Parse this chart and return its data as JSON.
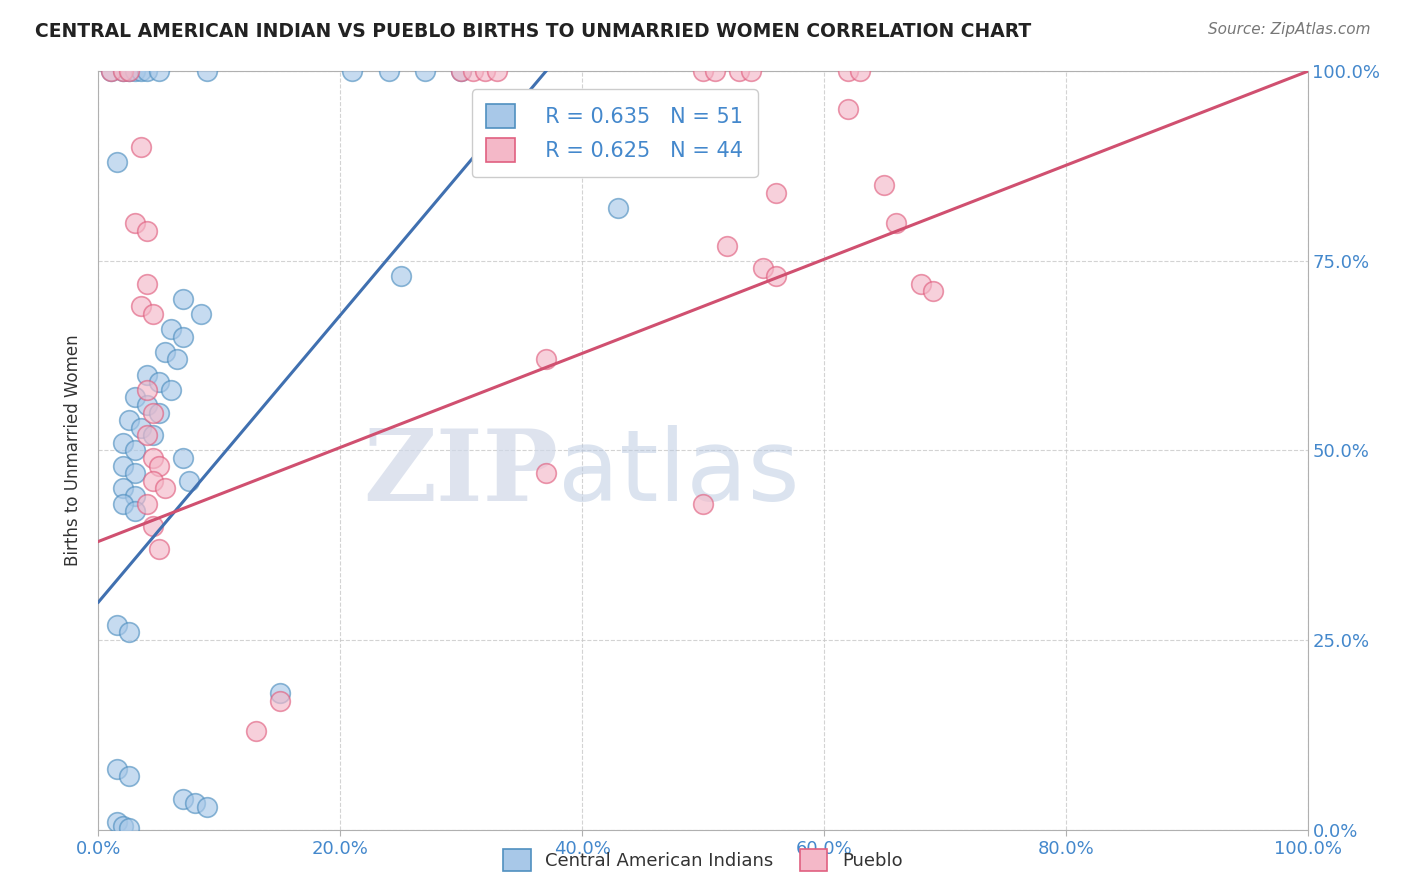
{
  "title": "CENTRAL AMERICAN INDIAN VS PUEBLO BIRTHS TO UNMARRIED WOMEN CORRELATION CHART",
  "source": "Source: ZipAtlas.com",
  "ylabel": "Births to Unmarried Women",
  "legend_blue_label": "Central American Indians",
  "legend_pink_label": "Pueblo",
  "blue_R": "R = 0.635",
  "blue_N": "N = 51",
  "pink_R": "R = 0.625",
  "pink_N": "N = 44",
  "blue_fill": "#a8c8e8",
  "pink_fill": "#f4b8c8",
  "blue_edge": "#5090c0",
  "pink_edge": "#e06080",
  "blue_line_color": "#4070b0",
  "pink_line_color": "#d05070",
  "xmin": 0.0,
  "xmax": 1.0,
  "ymin": 0.0,
  "ymax": 1.0,
  "yticks": [
    0.0,
    0.25,
    0.5,
    0.75,
    1.0
  ],
  "xtick_vals": [
    0.0,
    0.2,
    0.4,
    0.6,
    0.8,
    1.0
  ],
  "blue_scatter": [
    [
      0.01,
      1.0
    ],
    [
      0.02,
      1.0
    ],
    [
      0.025,
      1.0
    ],
    [
      0.03,
      1.0
    ],
    [
      0.035,
      1.0
    ],
    [
      0.04,
      1.0
    ],
    [
      0.05,
      1.0
    ],
    [
      0.09,
      1.0
    ],
    [
      0.21,
      1.0
    ],
    [
      0.24,
      1.0
    ],
    [
      0.27,
      1.0
    ],
    [
      0.3,
      1.0
    ],
    [
      0.015,
      0.88
    ],
    [
      0.43,
      0.82
    ],
    [
      0.25,
      0.73
    ],
    [
      0.07,
      0.7
    ],
    [
      0.085,
      0.68
    ],
    [
      0.06,
      0.66
    ],
    [
      0.07,
      0.65
    ],
    [
      0.055,
      0.63
    ],
    [
      0.065,
      0.62
    ],
    [
      0.04,
      0.6
    ],
    [
      0.05,
      0.59
    ],
    [
      0.06,
      0.58
    ],
    [
      0.03,
      0.57
    ],
    [
      0.04,
      0.56
    ],
    [
      0.05,
      0.55
    ],
    [
      0.025,
      0.54
    ],
    [
      0.035,
      0.53
    ],
    [
      0.045,
      0.52
    ],
    [
      0.02,
      0.51
    ],
    [
      0.03,
      0.5
    ],
    [
      0.07,
      0.49
    ],
    [
      0.02,
      0.48
    ],
    [
      0.03,
      0.47
    ],
    [
      0.075,
      0.46
    ],
    [
      0.02,
      0.45
    ],
    [
      0.03,
      0.44
    ],
    [
      0.02,
      0.43
    ],
    [
      0.03,
      0.42
    ],
    [
      0.015,
      0.27
    ],
    [
      0.025,
      0.26
    ],
    [
      0.15,
      0.18
    ],
    [
      0.015,
      0.08
    ],
    [
      0.025,
      0.07
    ],
    [
      0.07,
      0.04
    ],
    [
      0.08,
      0.035
    ],
    [
      0.09,
      0.03
    ],
    [
      0.015,
      0.01
    ],
    [
      0.02,
      0.005
    ],
    [
      0.025,
      0.002
    ]
  ],
  "pink_scatter": [
    [
      0.01,
      1.0
    ],
    [
      0.02,
      1.0
    ],
    [
      0.025,
      1.0
    ],
    [
      0.3,
      1.0
    ],
    [
      0.31,
      1.0
    ],
    [
      0.32,
      1.0
    ],
    [
      0.33,
      1.0
    ],
    [
      0.5,
      1.0
    ],
    [
      0.51,
      1.0
    ],
    [
      0.53,
      1.0
    ],
    [
      0.54,
      1.0
    ],
    [
      0.62,
      1.0
    ],
    [
      0.63,
      1.0
    ],
    [
      0.035,
      0.9
    ],
    [
      0.37,
      0.88
    ],
    [
      0.56,
      0.84
    ],
    [
      0.03,
      0.8
    ],
    [
      0.04,
      0.79
    ],
    [
      0.52,
      0.77
    ],
    [
      0.55,
      0.74
    ],
    [
      0.56,
      0.73
    ],
    [
      0.04,
      0.72
    ],
    [
      0.035,
      0.69
    ],
    [
      0.045,
      0.68
    ],
    [
      0.37,
      0.62
    ],
    [
      0.04,
      0.58
    ],
    [
      0.045,
      0.55
    ],
    [
      0.04,
      0.52
    ],
    [
      0.045,
      0.49
    ],
    [
      0.05,
      0.48
    ],
    [
      0.045,
      0.46
    ],
    [
      0.055,
      0.45
    ],
    [
      0.04,
      0.43
    ],
    [
      0.045,
      0.4
    ],
    [
      0.05,
      0.37
    ],
    [
      0.62,
      0.95
    ],
    [
      0.65,
      0.85
    ],
    [
      0.66,
      0.8
    ],
    [
      0.68,
      0.72
    ],
    [
      0.69,
      0.71
    ],
    [
      0.15,
      0.17
    ],
    [
      0.13,
      0.13
    ],
    [
      0.37,
      0.47
    ],
    [
      0.5,
      0.43
    ]
  ],
  "blue_line_x": [
    0.0,
    0.37
  ],
  "blue_line_y": [
    0.3,
    1.0
  ],
  "pink_line_x": [
    0.0,
    1.0
  ],
  "pink_line_y": [
    0.38,
    1.0
  ],
  "watermark_bold": "ZIP",
  "watermark_light": "atlas",
  "background_color": "#ffffff"
}
